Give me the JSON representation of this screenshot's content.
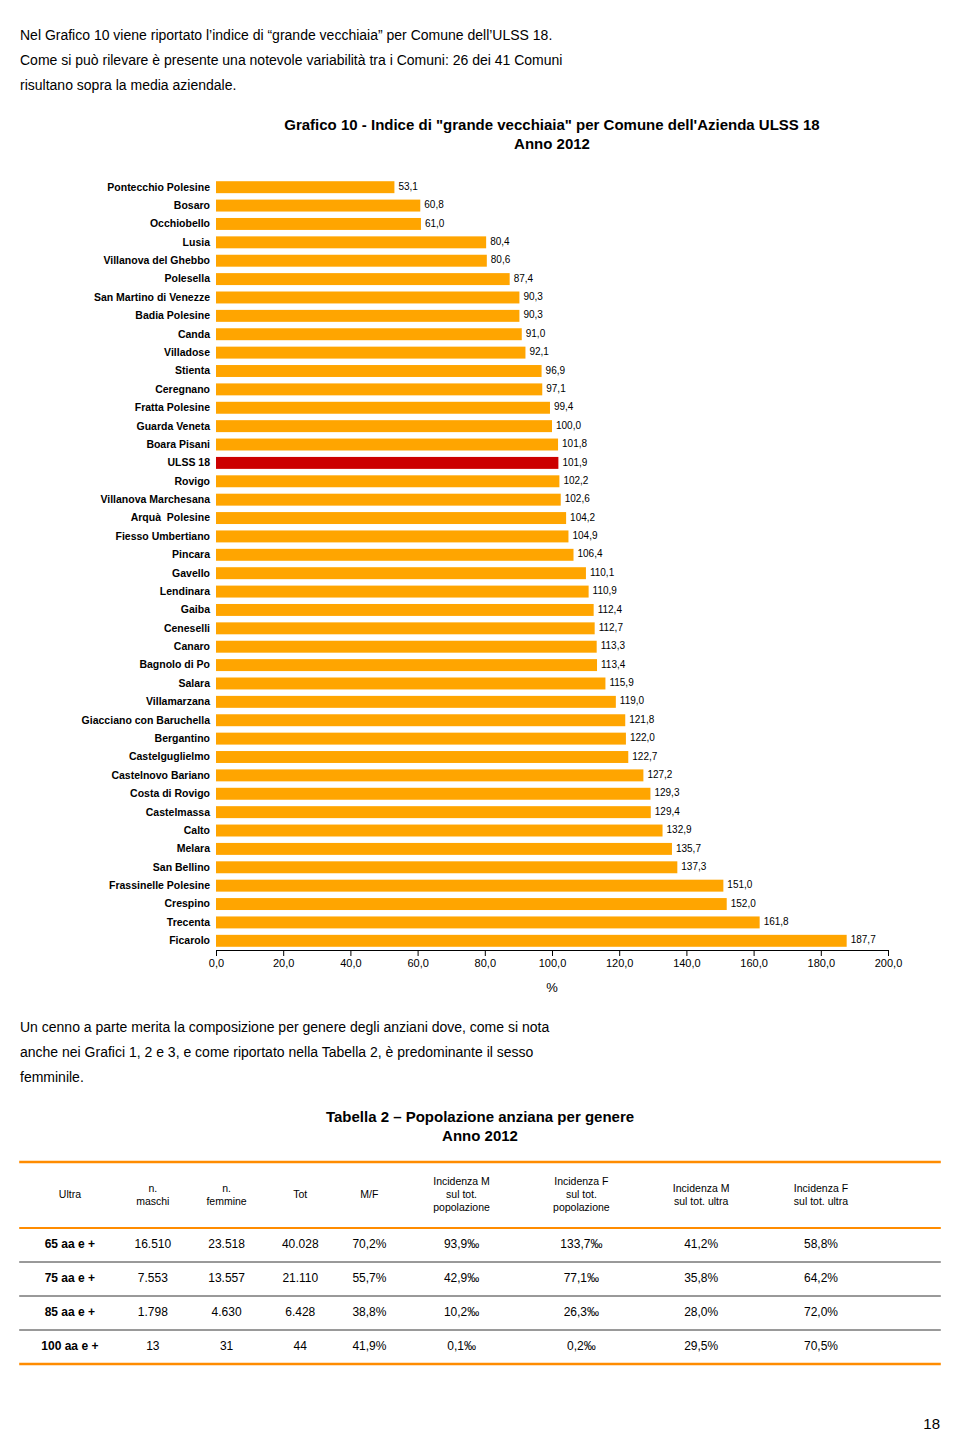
{
  "intro_text": "Nel Grafico 10 viene riportato l’indice di “grande vecchiaia” per Comune dell’ULSS 18.\nCome si può rilevare è presente una notevole variabilità tra i Comuni: 26 dei 41 Comuni\nrisultano sopra la media aziendale.",
  "chart_data": {
    "type": "bar",
    "orientation": "horizontal",
    "title": "Grafico 10 - Indice di \"grande vecchiaia\" per Comune dell'Azienda ULSS 18\nAnno 2012",
    "xlabel": "%",
    "categories": [
      "Pontecchio Polesine",
      "Bosaro",
      "Occhiobello",
      "Lusia",
      "Villanova del Ghebbo",
      "Polesella",
      "San Martino di Venezze",
      "Badia Polesine",
      "Canda",
      "Villadose",
      "Stienta",
      "Ceregnano",
      "Fratta Polesine",
      "Guarda Veneta",
      "Boara Pisani",
      "ULSS 18",
      "Rovigo",
      "Villanova Marchesana",
      "Arquà  Polesine",
      "Fiesso Umbertiano",
      "Pincara",
      "Gavello",
      "Lendinara",
      "Gaiba",
      "Ceneselli",
      "Canaro",
      "Bagnolo di Po",
      "Salara",
      "Villamarzana",
      "Giacciano con Baruchella",
      "Bergantino",
      "Castelguglielmo",
      "Castelnovo Bariano",
      "Costa di Rovigo",
      "Castelmassa",
      "Calto",
      "Melara",
      "San Bellino",
      "Frassinelle Polesine",
      "Crespino",
      "Trecenta",
      "Ficarolo"
    ],
    "values": [
      53.1,
      60.8,
      61.0,
      80.4,
      80.6,
      87.4,
      90.3,
      90.3,
      91.0,
      92.1,
      96.9,
      97.1,
      99.4,
      100.0,
      101.8,
      101.9,
      102.2,
      102.6,
      104.2,
      104.9,
      106.4,
      110.1,
      110.9,
      112.4,
      112.7,
      113.3,
      113.4,
      115.9,
      119.0,
      121.8,
      122.0,
      122.7,
      127.2,
      129.3,
      129.4,
      132.9,
      135.7,
      137.3,
      151.0,
      152.0,
      161.8,
      187.7
    ],
    "value_labels": [
      "53,1",
      "60,8",
      "61,0",
      "80,4",
      "80,6",
      "87,4",
      "90,3",
      "90,3",
      "91,0",
      "92,1",
      "96,9",
      "97,1",
      "99,4",
      "100,0",
      "101,8",
      "101,9",
      "102,2",
      "102,6",
      "104,2",
      "104,9",
      "106,4",
      "110,1",
      "110,9",
      "112,4",
      "112,7",
      "113,3",
      "113,4",
      "115,9",
      "119,0",
      "121,8",
      "122,0",
      "122,7",
      "127,2",
      "129,3",
      "129,4",
      "132,9",
      "135,7",
      "137,3",
      "151,0",
      "152,0",
      "161,8",
      "187,7"
    ],
    "data_labels": true,
    "colors": [
      "#FFA500",
      "#FFA500",
      "#FFA500",
      "#FFA500",
      "#FFA500",
      "#FFA500",
      "#FFA500",
      "#FFA500",
      "#FFA500",
      "#FFA500",
      "#FFA500",
      "#FFA500",
      "#FFA500",
      "#FFA500",
      "#FFA500",
      "#CC0000",
      "#FFA500",
      "#FFA500",
      "#FFA500",
      "#FFA500",
      "#FFA500",
      "#FFA500",
      "#FFA500",
      "#FFA500",
      "#FFA500",
      "#FFA500",
      "#FFA500",
      "#FFA500",
      "#FFA500",
      "#FFA500",
      "#FFA500",
      "#FFA500",
      "#FFA500",
      "#FFA500",
      "#FFA500",
      "#FFA500",
      "#FFA500",
      "#FFA500",
      "#FFA500",
      "#FFA500",
      "#FFA500",
      "#FFA500"
    ],
    "xlim": [
      0,
      200
    ],
    "xticks": [
      {
        "value": 0,
        "label": "0,0"
      },
      {
        "value": 20,
        "label": "20,0"
      },
      {
        "value": 40,
        "label": "40,0"
      },
      {
        "value": 60,
        "label": "60,0"
      },
      {
        "value": 80,
        "label": "80,0"
      },
      {
        "value": 100,
        "label": "100,0"
      },
      {
        "value": 120,
        "label": "120,0"
      },
      {
        "value": 140,
        "label": "140,0"
      },
      {
        "value": 160,
        "label": "160,0"
      },
      {
        "value": 180,
        "label": "180,0"
      },
      {
        "value": 200,
        "label": "200,0"
      }
    ],
    "grid": false
  },
  "paragraph_text": "Un cenno a parte merita la composizione per genere degli anziani dove, come si nota\nanche nei Grafici 1, 2 e 3, e come riportato nella Tabella 2, è predominante il sesso\nfemminile.",
  "table": {
    "title": "Tabella 2 – Popolazione anziana per genere\nAnno 2012",
    "color": "#FF8C00",
    "headers": [
      "Ultra",
      "n.\nmaschi",
      "n.\nfemmine",
      "Tot",
      "M/F",
      "Incidenza M\nsul tot.\npopolazione",
      "Incidenza F\nsul tot.\npopolazione",
      "Incidenza M\nsul tot. ultra",
      "Incidenza F\nsul tot. ultra"
    ],
    "rows": [
      [
        "65 aa e +",
        "16.510",
        "23.518",
        "40.028",
        "70,2%",
        "93,9‰",
        "133,7‰",
        "41,2%",
        "58,8%"
      ],
      [
        "75 aa e +",
        "7.553",
        "13.557",
        "21.110",
        "55,7%",
        "42,9‰",
        "77,1‰",
        "35,8%",
        "64,2%"
      ],
      [
        "85 aa e +",
        "1.798",
        "4.630",
        "6.428",
        "38,8%",
        "10,2‰",
        "26,3‰",
        "28,0%",
        "72,0%"
      ],
      [
        "100 aa e +",
        "13",
        "31",
        "44",
        "41,9%",
        "0,1‰",
        "0,2‰",
        "29,5%",
        "70,5%"
      ]
    ]
  },
  "page_number": "18"
}
